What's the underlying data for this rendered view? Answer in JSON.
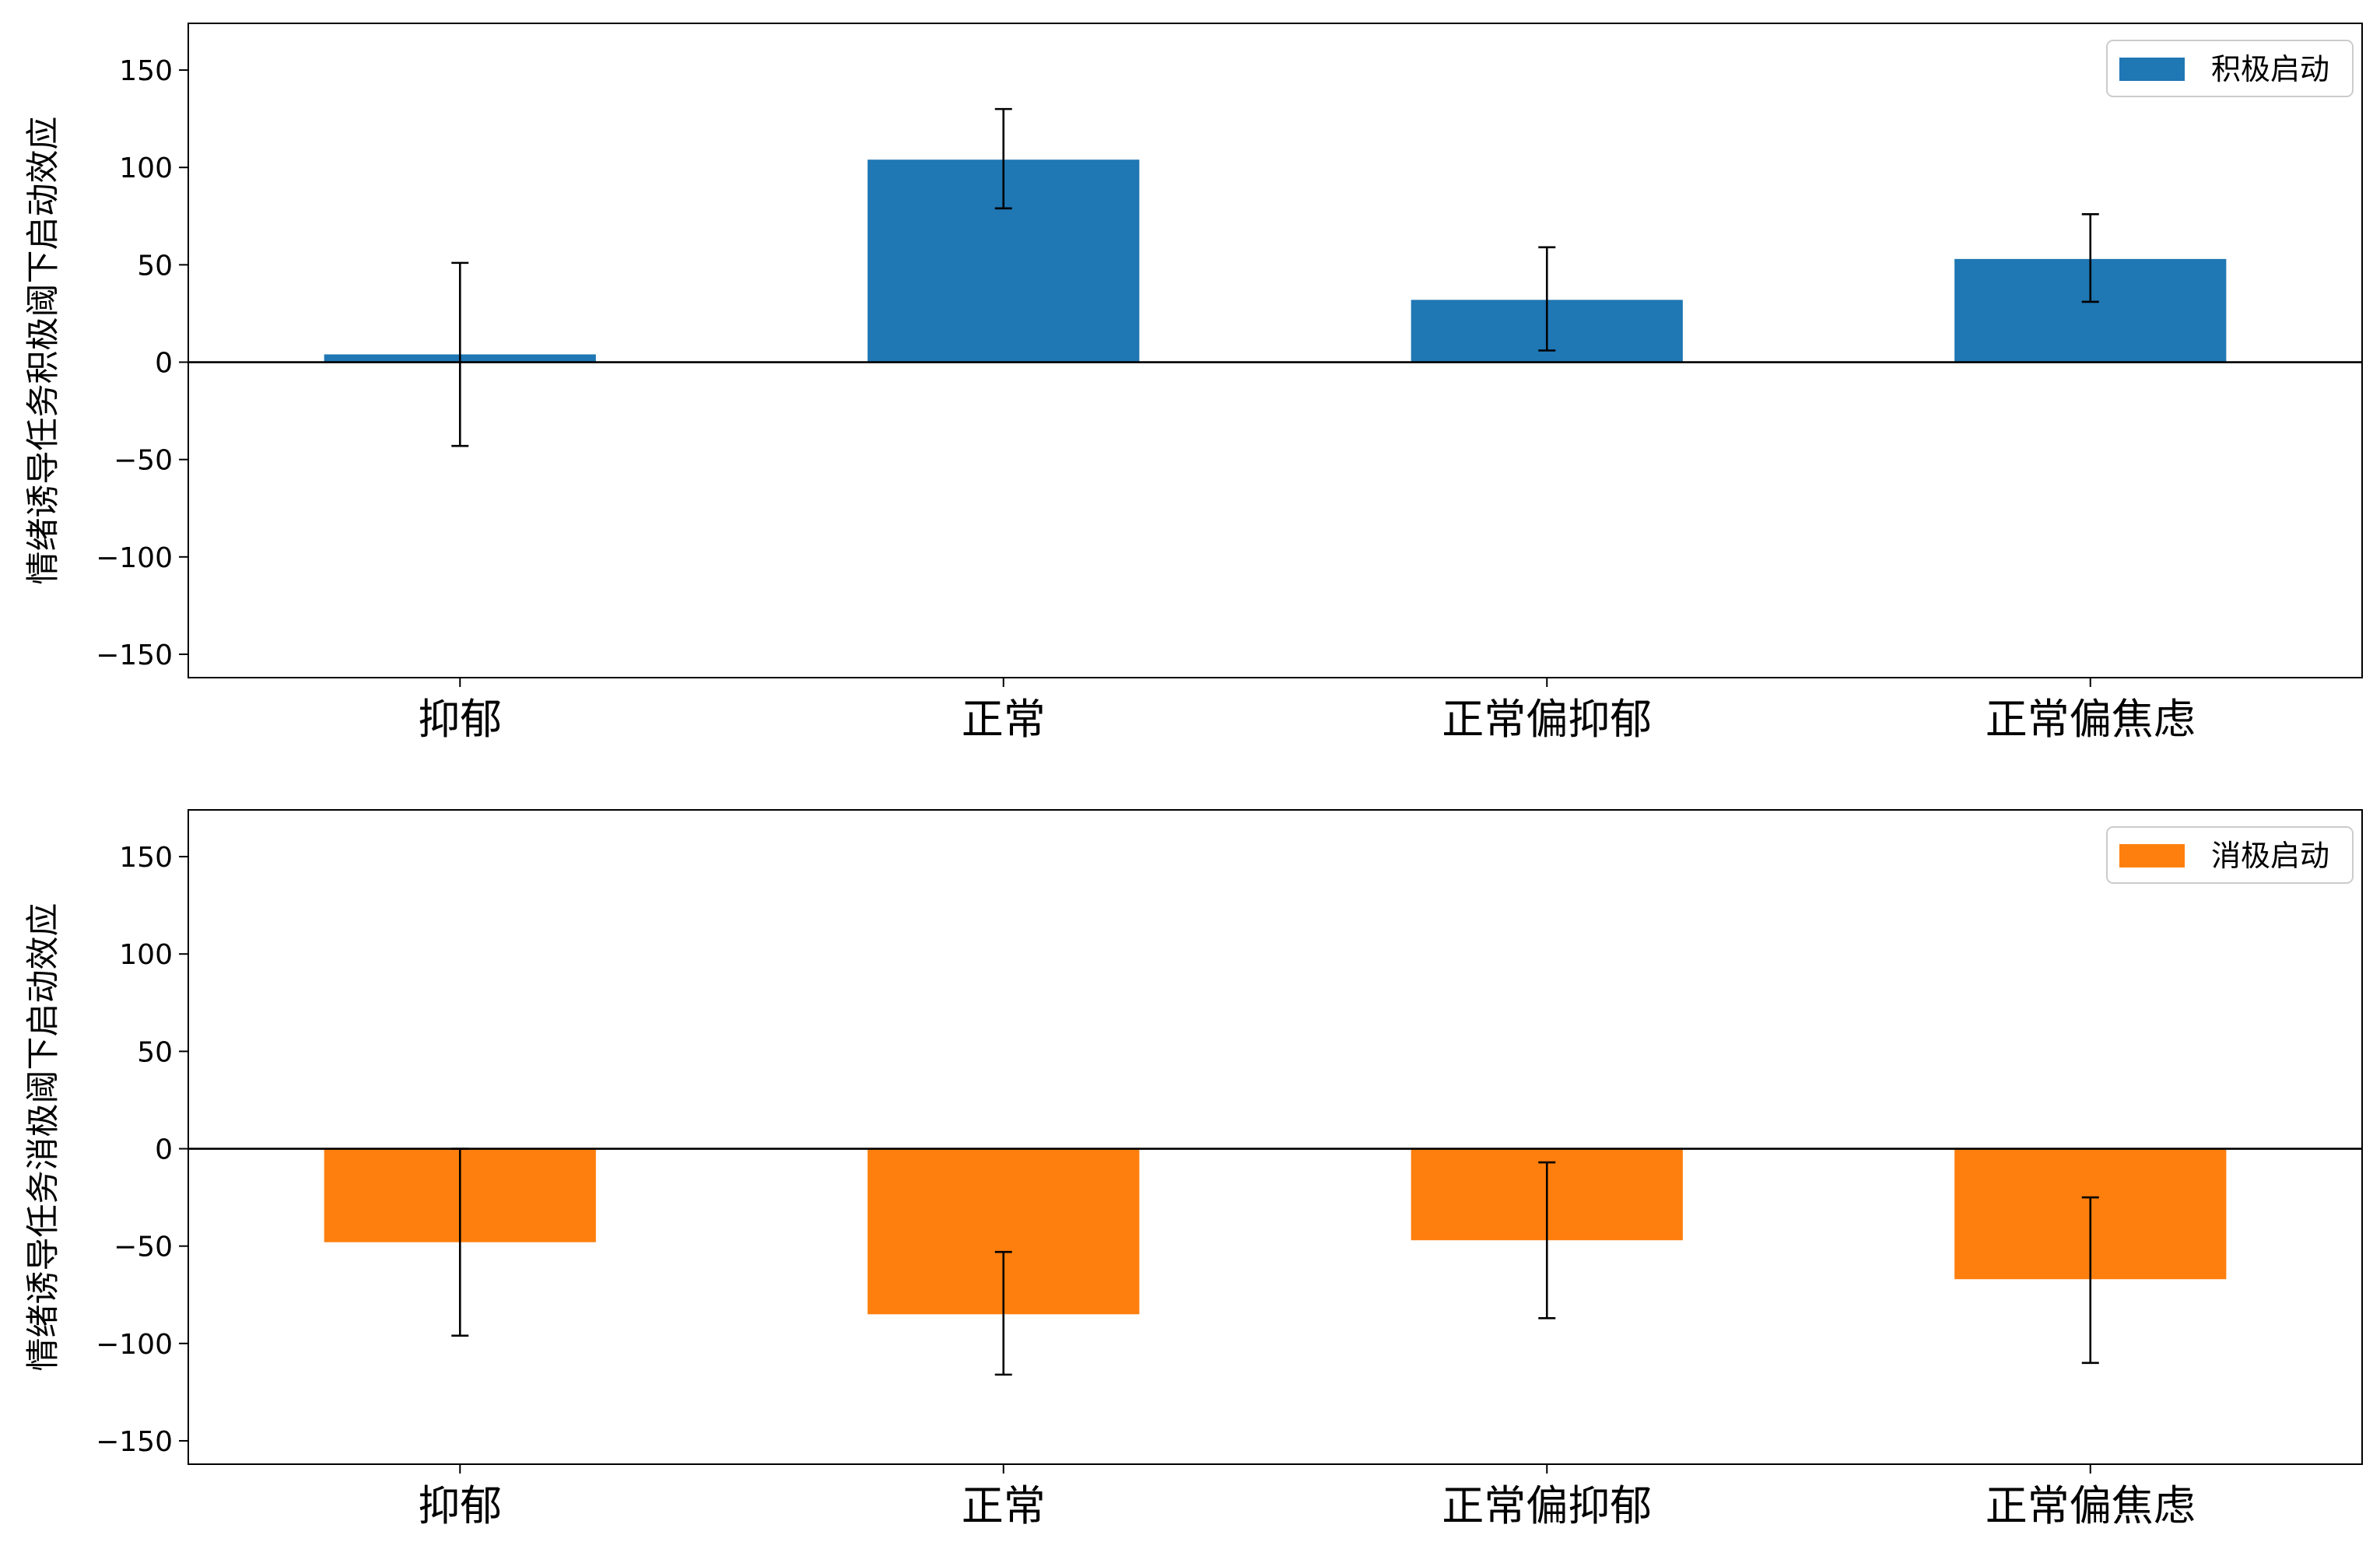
{
  "chart_data": [
    {
      "type": "bar",
      "categories": [
        "抑郁",
        "正常",
        "正常偏抑郁",
        "正常偏焦虑"
      ],
      "series": [
        {
          "name": "积极启动",
          "color": "#1f77b4",
          "values": [
            4,
            104,
            32,
            53
          ],
          "error_low": [
            -43,
            79,
            6,
            31
          ],
          "error_high": [
            51,
            130,
            59,
            76
          ]
        }
      ],
      "ylabel": "情绪诱导任务积极阈下启动效应",
      "xlabel": "",
      "ylim": [
        -162,
        174
      ],
      "yticks": [
        150,
        100,
        50,
        0,
        -50,
        -100,
        -150
      ],
      "ytick_labels": [
        "150",
        "100",
        "50",
        "0",
        "−50",
        "−100",
        "−150"
      ],
      "legend_position": "top-right",
      "grid": false,
      "zero_line": true
    },
    {
      "type": "bar",
      "categories": [
        "抑郁",
        "正常",
        "正常偏抑郁",
        "正常偏焦虑"
      ],
      "series": [
        {
          "name": "消极启动",
          "color": "#ff7f0e",
          "values": [
            -48,
            -85,
            -47,
            -67
          ],
          "error_low": [
            -96,
            -116,
            -87,
            -110
          ],
          "error_high": [
            0,
            -53,
            -7,
            -25
          ]
        }
      ],
      "ylabel": "情绪诱导任务消极阈下启动效应",
      "xlabel": "",
      "ylim": [
        -162,
        174
      ],
      "yticks": [
        150,
        100,
        50,
        0,
        -50,
        -100,
        -150
      ],
      "ytick_labels": [
        "150",
        "100",
        "50",
        "0",
        "−50",
        "−100",
        "−150"
      ],
      "legend_position": "top-right",
      "grid": false,
      "zero_line": true
    }
  ]
}
